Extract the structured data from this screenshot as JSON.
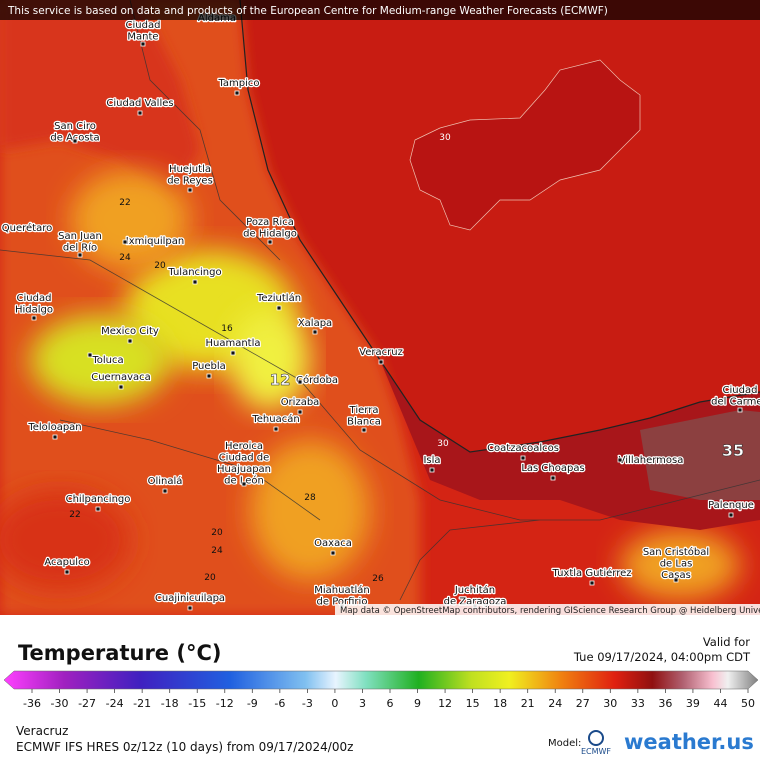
{
  "banner": "This service is based on data and products of the European Centre for Medium-range Weather Forecasts (ECMWF)",
  "attribution": "Map data © OpenStreetMap contributors, rendering GIScience Research Group @ Heidelberg University",
  "map": {
    "cities": [
      {
        "lines": [
          "Aldama"
        ]
      },
      {
        "lines": [
          "Ciudad",
          "Mante"
        ]
      },
      {
        "lines": [
          "Tampico"
        ]
      },
      {
        "lines": [
          "Ciudad Valles"
        ]
      },
      {
        "lines": [
          "San Ciro",
          "de Acosta"
        ]
      },
      {
        "lines": [
          "Huejutla",
          "de Reyes"
        ]
      },
      {
        "lines": [
          "Poza Rica",
          "de Hidalgo"
        ]
      },
      {
        "lines": [
          "Querétaro"
        ]
      },
      {
        "lines": [
          "San Juan",
          "del Río"
        ]
      },
      {
        "lines": [
          "Ixmiquilpan"
        ]
      },
      {
        "lines": [
          "Tulancingo"
        ]
      },
      {
        "lines": [
          "Teziutlán"
        ]
      },
      {
        "lines": [
          "Ciudad",
          "Hidalgo"
        ]
      },
      {
        "lines": [
          "Xalapa"
        ]
      },
      {
        "lines": [
          "Mexico City"
        ]
      },
      {
        "lines": [
          "Huamantla"
        ]
      },
      {
        "lines": [
          "Veracruz"
        ]
      },
      {
        "lines": [
          "Toluca"
        ]
      },
      {
        "lines": [
          "Puebla"
        ]
      },
      {
        "lines": [
          "Cuernavaca"
        ]
      },
      {
        "lines": [
          "Córdoba"
        ]
      },
      {
        "lines": [
          "Orizaba"
        ]
      },
      {
        "lines": [
          "Tierra",
          "Blanca"
        ]
      },
      {
        "lines": [
          "Tehuacán"
        ]
      },
      {
        "lines": [
          "Teloloapan"
        ]
      },
      {
        "lines": [
          "Heroica",
          "Ciudad de",
          "Huajuapan",
          "de León"
        ]
      },
      {
        "lines": [
          "Coatzacoalcos"
        ]
      },
      {
        "lines": [
          "Villahermosa"
        ]
      },
      {
        "lines": [
          "Las Choapas"
        ]
      },
      {
        "lines": [
          "Isla"
        ]
      },
      {
        "lines": [
          "Olinalá"
        ]
      },
      {
        "lines": [
          "Chilpancingo"
        ]
      },
      {
        "lines": [
          "Palenque"
        ]
      },
      {
        "lines": [
          "Oaxaca"
        ]
      },
      {
        "lines": [
          "San Cristóbal",
          "de Las",
          "Casas"
        ]
      },
      {
        "lines": [
          "Acapulco"
        ]
      },
      {
        "lines": [
          "Tuxtla Gutiérrez"
        ]
      },
      {
        "lines": [
          "Cuajinicuilapa"
        ]
      },
      {
        "lines": [
          "Juchitán",
          "de Zaragoza"
        ]
      },
      {
        "lines": [
          "Miahuatlán",
          "de Porfirio"
        ]
      },
      {
        "lines": [
          "Ciudad",
          "del Carmen"
        ]
      }
    ],
    "contour_labels": [
      "30",
      "12",
      "35",
      "22",
      "16",
      "20",
      "24",
      "28",
      "30",
      "20",
      "24",
      "22",
      "20",
      "26"
    ]
  },
  "legend": {
    "title": "Temperature (°C)",
    "valid_label": "Valid for",
    "valid_time": "Tue 09/17/2024, 04:00pm CDT",
    "ticks": [
      "-36",
      "-30",
      "-27",
      "-24",
      "-21",
      "-18",
      "-15",
      "-12",
      "-9",
      "-6",
      "-3",
      "0",
      "3",
      "6",
      "9",
      "12",
      "15",
      "18",
      "21",
      "24",
      "27",
      "30",
      "33",
      "36",
      "39",
      "44",
      "50"
    ]
  },
  "footer": {
    "location": "Veracruz",
    "model_run": "ECMWF IFS HRES 0z/12z (10 days) from 09/17/2024/00z",
    "model_label": "Model:",
    "ecmwf": "ECMWF",
    "brand": "weather.us"
  }
}
